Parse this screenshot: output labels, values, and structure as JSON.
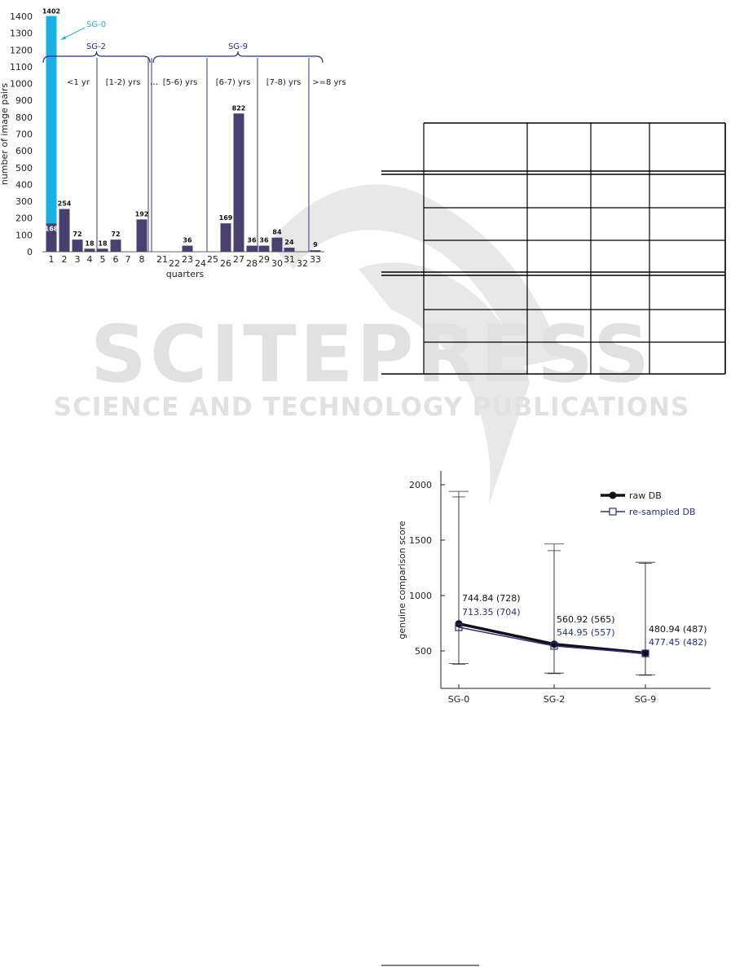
{
  "watermark": {
    "title": "SCITEPRESS",
    "subtitle": "SCIENCE AND TECHNOLOGY PUBLICATIONS"
  },
  "chart_data": [
    {
      "type": "bar",
      "xlabel": "quarters",
      "ylabel": "number of image pairs",
      "ylim": [
        0,
        1400
      ],
      "yticks": [
        0,
        100,
        200,
        300,
        400,
        500,
        600,
        700,
        800,
        900,
        1000,
        1100,
        1200,
        1300,
        1400
      ],
      "categories": [
        "1",
        "2",
        "3",
        "4",
        "5",
        "6",
        "7",
        "8",
        "21",
        "22",
        "23",
        "24",
        "25",
        "26",
        "27",
        "28",
        "29",
        "30",
        "31",
        "32",
        "33"
      ],
      "series": [
        {
          "values": [
            168,
            254,
            72,
            18,
            18,
            72,
            0,
            192,
            0,
            0,
            36,
            0,
            0,
            169,
            822,
            36,
            36,
            84,
            24,
            0,
            9
          ],
          "color": "#4a4070"
        },
        {
          "values": [
            1402,
            null,
            null,
            null,
            null,
            null,
            null,
            null,
            null,
            null,
            null,
            null,
            null,
            null,
            null,
            null,
            null,
            null,
            null,
            null,
            null
          ],
          "color": "#1ab0e6"
        }
      ],
      "gap_marker": "...",
      "period_labels": [
        "<1 yr",
        "[1-2) yrs",
        "[5-6) yrs",
        "[6-7) yrs",
        "[7-8) yrs",
        ">=8 yrs"
      ],
      "group_labels": [
        "SG-0",
        "SG-2",
        "SG-9"
      ]
    },
    {
      "type": "line",
      "ylabel": "genuine comparison score",
      "categories": [
        "SG-0",
        "SG-2",
        "SG-9"
      ],
      "yticks": [
        500,
        1000,
        1500,
        2000
      ],
      "legend_position": "top-right",
      "series": [
        {
          "name": "raw DB",
          "values": [
            744.84,
            560.92,
            480.94
          ],
          "medians": [
            728,
            565,
            487
          ],
          "labels": [
            "744.84 (728)",
            "560.92 (565)",
            "480.94 (487)"
          ],
          "color": "#111111",
          "error_low": [
            385,
            300,
            285
          ],
          "error_high": [
            1940,
            1465,
            1300
          ]
        },
        {
          "name": "re-sampled DB",
          "values": [
            713.35,
            544.95,
            477.45
          ],
          "medians": [
            704,
            557,
            482
          ],
          "labels": [
            "713.35 (704)",
            "544.95 (557)",
            "477.45 (482)"
          ],
          "color": "#2c2c8c",
          "error_low": [
            380,
            295,
            280
          ],
          "error_high": [
            1890,
            1405,
            1290
          ]
        }
      ]
    }
  ]
}
